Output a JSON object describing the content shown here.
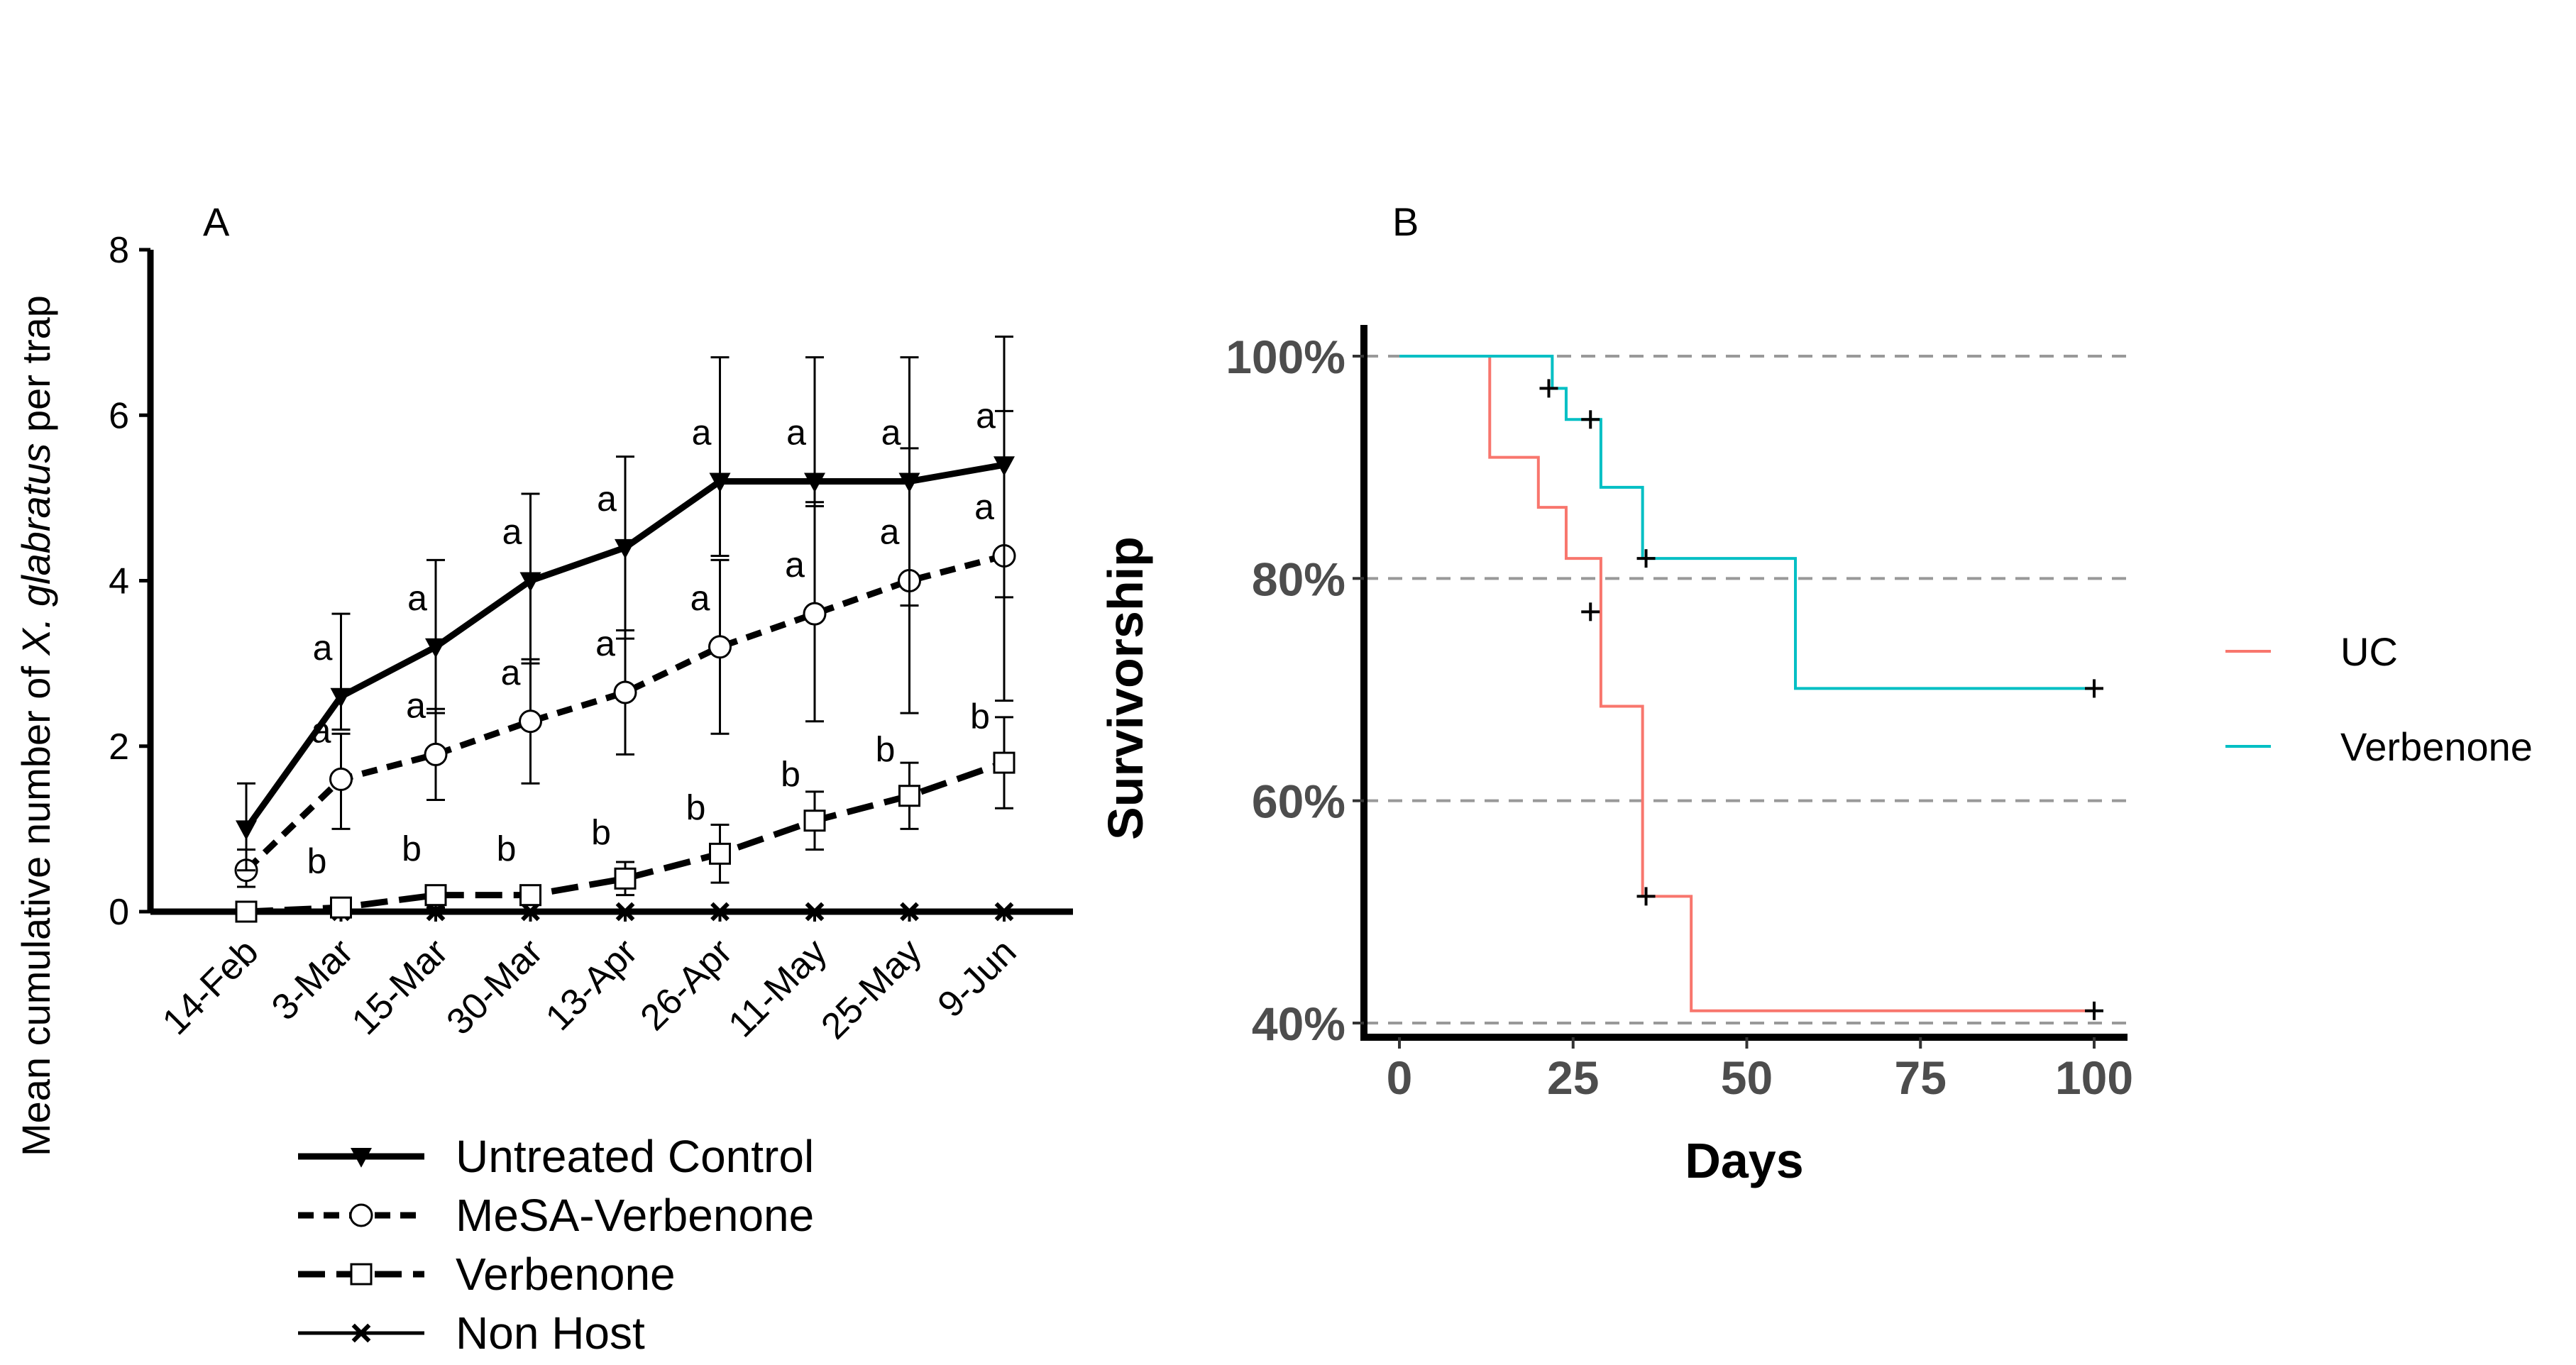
{
  "chart_data": [
    {
      "panel": "A",
      "type": "line",
      "title": "",
      "ylabel_parts": [
        "Mean cumulative number of ",
        "X. glabratus",
        " per trap"
      ],
      "xlabel": "",
      "ylim": [
        0,
        8
      ],
      "yticks": [
        0,
        2,
        4,
        6,
        8
      ],
      "categories": [
        "14-Feb",
        "3-Mar",
        "15-Mar",
        "30-Mar",
        "13-Apr",
        "26-Apr",
        "11-May",
        "25-May",
        "9-Jun"
      ],
      "series": [
        {
          "name": "Untreated Control",
          "marker": "triangle-down",
          "dash": "solid",
          "values": [
            1.0,
            2.6,
            3.2,
            4.0,
            4.4,
            5.2,
            5.2,
            5.2,
            5.4
          ],
          "err_low": [
            0.5,
            2.2,
            2.4,
            3.0,
            3.3,
            4.3,
            4.9,
            3.7,
            3.8
          ],
          "err_high": [
            1.55,
            3.6,
            4.25,
            5.05,
            5.5,
            6.7,
            6.7,
            6.7,
            6.95
          ],
          "letters": [
            "",
            "a",
            "a",
            "a",
            "a",
            "a",
            "a",
            "a",
            "a"
          ]
        },
        {
          "name": "MeSA-Verbenone",
          "marker": "circle-open",
          "dash": "dash",
          "values": [
            0.5,
            1.6,
            1.9,
            2.3,
            2.65,
            3.2,
            3.6,
            4.0,
            4.3
          ],
          "err_low": [
            0.3,
            1.0,
            1.35,
            1.55,
            1.9,
            2.15,
            2.3,
            2.4,
            2.55
          ],
          "err_high": [
            0.75,
            2.15,
            2.45,
            3.05,
            3.4,
            4.25,
            4.95,
            5.6,
            6.05
          ],
          "letters": [
            "",
            "a",
            "a",
            "a",
            "a",
            "a",
            "a",
            "a",
            "a"
          ]
        },
        {
          "name": "Verbenone",
          "marker": "square-open",
          "dash": "longdash",
          "values": [
            0.0,
            0.05,
            0.2,
            0.2,
            0.4,
            0.7,
            1.1,
            1.4,
            1.8
          ],
          "err_low": [
            0.0,
            0.0,
            0.05,
            0.1,
            0.2,
            0.35,
            0.75,
            1.0,
            1.25
          ],
          "err_high": [
            0.0,
            0.1,
            0.3,
            0.3,
            0.6,
            1.05,
            1.45,
            1.8,
            2.35
          ],
          "letters": [
            "",
            "b",
            "b",
            "b",
            "b",
            "b",
            "b",
            "b",
            "b"
          ]
        },
        {
          "name": "Non Host",
          "marker": "x",
          "dash": "solid",
          "values": [
            0,
            0,
            0,
            0,
            0,
            0,
            0,
            0,
            0
          ],
          "letters": [
            "",
            "",
            "",
            "",
            "",
            "",
            "",
            "",
            ""
          ]
        }
      ],
      "legend": [
        "Untreated Control",
        "MeSA-Verbenone",
        "Verbenone",
        "Non Host"
      ],
      "legend_position": "bottom"
    },
    {
      "panel": "B",
      "type": "line",
      "subtype": "kaplan-meier step",
      "title": "",
      "xlabel": "Days",
      "ylabel": "Survivorship",
      "xlim": [
        0,
        100
      ],
      "ylim": [
        40,
        100
      ],
      "xticks": [
        0,
        25,
        50,
        75,
        100
      ],
      "yticks": [
        40,
        60,
        80,
        100
      ],
      "ytick_labels": [
        "40%",
        "60%",
        "80%",
        "100%"
      ],
      "grid": "horizontal dashed",
      "series": [
        {
          "name": "UC",
          "color": "#f8766d",
          "steps": [
            [
              0,
              100
            ],
            [
              13,
              90.9
            ],
            [
              20,
              86.4
            ],
            [
              24,
              81.8
            ],
            [
              29,
              68.5
            ],
            [
              35,
              51.4
            ],
            [
              42,
              41.1
            ],
            [
              100,
              41.1
            ]
          ],
          "censored": [
            [
              27.5,
              77.0
            ],
            [
              35.5,
              51.4
            ],
            [
              100,
              41.1
            ]
          ]
        },
        {
          "name": "Verbenone",
          "color": "#00bfc4",
          "steps": [
            [
              0,
              100
            ],
            [
              22,
              97.1
            ],
            [
              24,
              94.3
            ],
            [
              29,
              88.2
            ],
            [
              35,
              81.8
            ],
            [
              57,
              70.1
            ],
            [
              100,
              70.1
            ]
          ],
          "censored": [
            [
              21.5,
              97.1
            ],
            [
              27.5,
              94.3
            ],
            [
              35.5,
              81.8
            ],
            [
              100,
              70.1
            ]
          ]
        }
      ],
      "legend": [
        "UC",
        "Verbenone"
      ],
      "legend_position": "right"
    }
  ]
}
